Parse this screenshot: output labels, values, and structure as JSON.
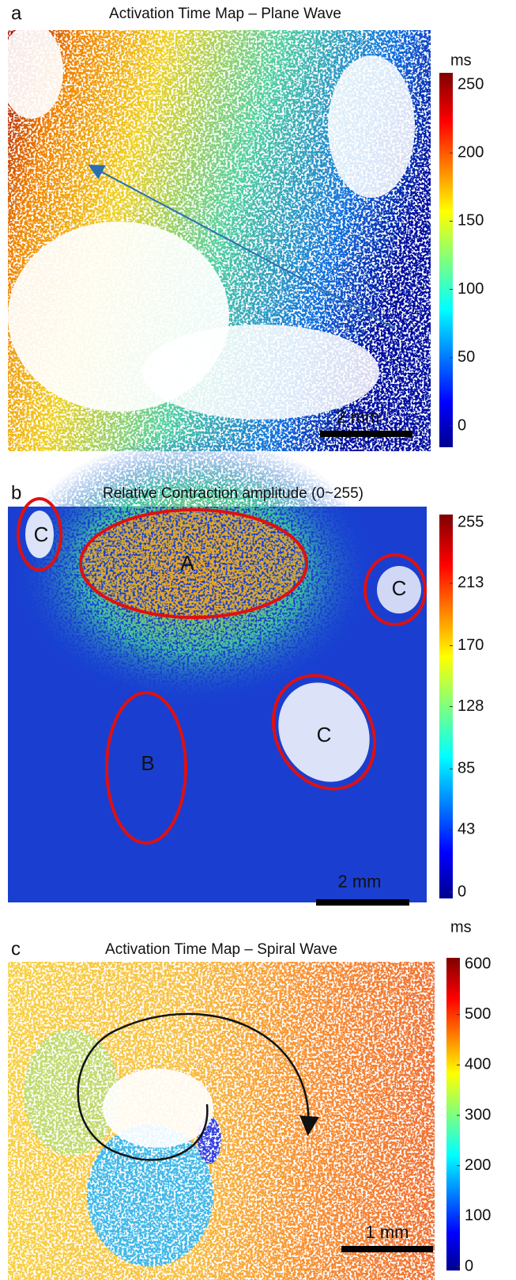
{
  "chart_data": [
    {
      "type": "heatmap",
      "panel": "a",
      "title": "Activation Time Map – Plane Wave",
      "colorbar_label": "ms",
      "clim": [
        0,
        250
      ],
      "cticks": [
        0,
        50,
        100,
        150,
        200,
        250
      ],
      "scale_bar": "2 mm"
    },
    {
      "type": "heatmap",
      "panel": "b",
      "title": "Relative Contraction amplitude (0~255)",
      "clim": [
        0,
        255
      ],
      "cticks": [
        0,
        43,
        85,
        128,
        170,
        213,
        255
      ],
      "scale_bar": "2 mm",
      "annotations": [
        "A",
        "C",
        "C",
        "B",
        "C"
      ]
    },
    {
      "type": "heatmap",
      "panel": "c",
      "title": "Activation Time Map – Spiral Wave",
      "colorbar_label": "ms",
      "clim": [
        0,
        600
      ],
      "cticks": [
        0,
        100,
        200,
        300,
        400,
        500,
        600
      ],
      "scale_bar": "1 mm"
    }
  ]
}
